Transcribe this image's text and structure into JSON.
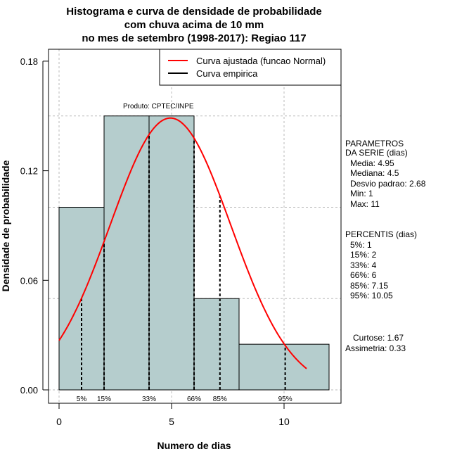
{
  "chart_data": {
    "type": "bar",
    "title": [
      "Histograma e curva de densidade de probabilidade",
      "com chuva acima de 10 mm",
      "no mes de setembro (1998-2017): Regiao 117"
    ],
    "xlabel": "Numero de dias",
    "ylabel": "Densidade de probabilidade",
    "xlim": [
      -1,
      12.5
    ],
    "ylim": [
      0,
      0.18
    ],
    "xticks": [
      0,
      5,
      10
    ],
    "xtick_labels": [
      "0",
      "5",
      "10"
    ],
    "yticks": [
      0,
      0.06,
      0.12,
      0.18
    ],
    "ytick_labels": [
      "0.00",
      "0.06",
      "0.12",
      "0.18"
    ],
    "grid": true,
    "bins": [
      {
        "from": 0,
        "to": 2,
        "density": 0.1
      },
      {
        "from": 2,
        "to": 4,
        "density": 0.15
      },
      {
        "from": 4,
        "to": 6,
        "density": 0.15
      },
      {
        "from": 6,
        "to": 8,
        "density": 0.05
      },
      {
        "from": 8,
        "to": 12,
        "density": 0.025
      }
    ],
    "normal_curve": {
      "mean": 4.95,
      "sd": 2.68,
      "from": 0,
      "to": 11
    },
    "percentiles": [
      {
        "label": "5%",
        "value": 1
      },
      {
        "label": "15%",
        "value": 2
      },
      {
        "label": "33%",
        "value": 4
      },
      {
        "label": "66%",
        "value": 6
      },
      {
        "label": "85%",
        "value": 7.15
      },
      {
        "label": "95%",
        "value": 10.05
      }
    ],
    "legend": {
      "placement": "top-right",
      "entries": [
        {
          "label": "Curva ajustada (funcao Normal)",
          "color": "#ff0000"
        },
        {
          "label": "Curva empirica",
          "color": "#000000"
        }
      ]
    },
    "annotation": "Produto: CPTEC/INPE",
    "bar_color": "#b5cdcd"
  },
  "side_panel": {
    "params_title": [
      "PARAMETROS",
      "DA SERIE (dias)"
    ],
    "params": [
      "Media: 4.95",
      "Mediana: 4.5",
      "Desvio padrao: 2.68",
      "Min: 1",
      "Max: 11"
    ],
    "percentis_title": "PERCENTIS (dias)",
    "percentis": [
      "5%: 1",
      "15%: 2",
      "33%: 4",
      "66%: 6",
      "85%: 7.15",
      "95%: 10.05"
    ],
    "curtose": "Curtose: 1.67",
    "assimetria": "Assimetria: 0.33"
  }
}
